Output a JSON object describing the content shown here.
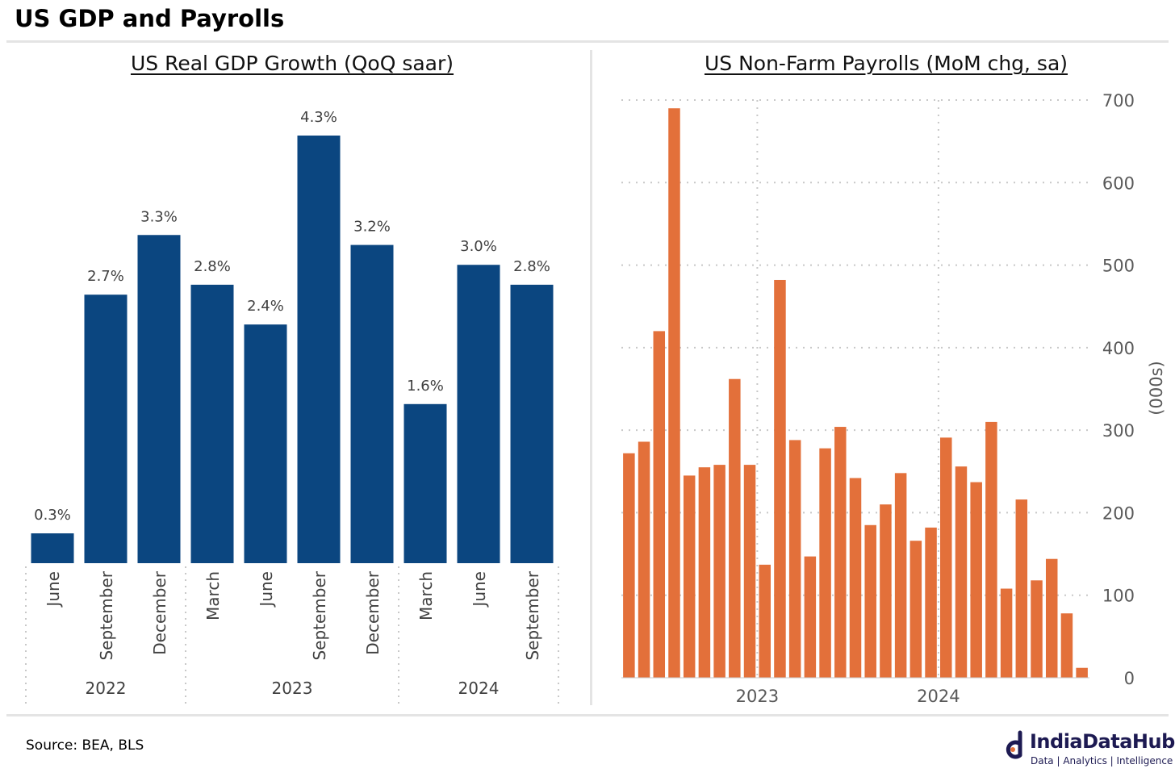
{
  "title": "US GDP and Payrolls",
  "source": "Source: BEA, BLS",
  "logo": {
    "name": "IndiaDataHub",
    "tagline": "Data | Analytics | Intelligence"
  },
  "colors": {
    "gdp_bar": "#0b4680",
    "nfp_bar": "#e3703a",
    "grid": "#c8c8c8",
    "axis_text": "#595959",
    "rule": "#e4e4e4",
    "logo": "#1d1a52"
  },
  "chart_data": [
    {
      "type": "bar",
      "title": "US Real GDP Growth (QoQ saar)",
      "categories": [
        "June",
        "September",
        "December",
        "March",
        "June",
        "September",
        "December",
        "March",
        "June",
        "September"
      ],
      "groups": [
        {
          "label": "2022",
          "count": 3
        },
        {
          "label": "2023",
          "count": 4
        },
        {
          "label": "2024",
          "count": 3
        }
      ],
      "values": [
        0.3,
        2.7,
        3.3,
        2.8,
        2.4,
        4.3,
        3.2,
        1.6,
        3.0,
        2.8
      ],
      "data_labels": [
        "0.3%",
        "2.7%",
        "3.3%",
        "2.8%",
        "2.4%",
        "4.3%",
        "3.2%",
        "1.6%",
        "3.0%",
        "2.8%"
      ],
      "ylim": [
        0,
        4.6
      ],
      "xlabel": "",
      "ylabel": "",
      "grid": false
    },
    {
      "type": "bar",
      "title": "US Non-Farm Payrolls (MoM chg, sa)",
      "x": [
        "2022-04",
        "2022-05",
        "2022-06",
        "2022-07",
        "2022-08",
        "2022-09",
        "2022-10",
        "2022-11",
        "2022-12",
        "2023-01",
        "2023-02",
        "2023-03",
        "2023-04",
        "2023-05",
        "2023-06",
        "2023-07",
        "2023-08",
        "2023-09",
        "2023-10",
        "2023-11",
        "2023-12",
        "2024-01",
        "2024-02",
        "2024-03",
        "2024-04",
        "2024-05",
        "2024-06",
        "2024-07",
        "2024-08",
        "2024-09",
        "2024-10"
      ],
      "values": [
        272,
        286,
        420,
        690,
        245,
        255,
        258,
        362,
        258,
        137,
        482,
        288,
        147,
        278,
        304,
        242,
        185,
        210,
        248,
        166,
        182,
        291,
        256,
        237,
        310,
        108,
        216,
        118,
        144,
        78,
        12
      ],
      "x_ticks": [
        "2023",
        "2024"
      ],
      "y_ticks": [
        "0",
        "100",
        "200",
        "300",
        "400",
        "500",
        "600",
        "700"
      ],
      "ylim": [
        0,
        700
      ],
      "xlabel": "",
      "ylabel": "(000s)",
      "y_axis_position": "right",
      "grid": true
    }
  ]
}
